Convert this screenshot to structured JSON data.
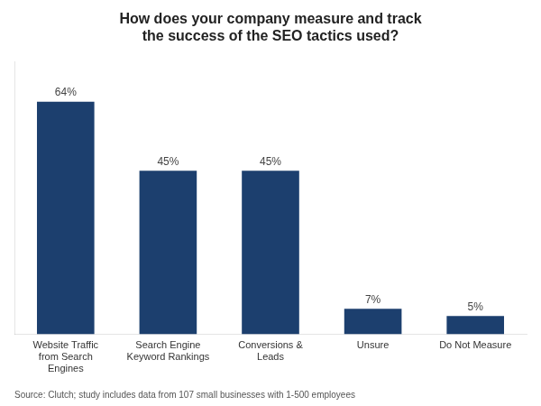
{
  "chart_data": {
    "type": "bar",
    "title": "How does your company measure and track\nthe success of the SEO tactics used?",
    "categories": [
      "Website Traffic\nfrom Search\nEngines",
      "Search Engine\nKeyword Rankings",
      "Conversions &\nLeads",
      "Unsure",
      "Do Not Measure"
    ],
    "values": [
      64,
      45,
      45,
      7,
      5
    ],
    "value_labels": [
      "64%",
      "45%",
      "45%",
      "7%",
      "5%"
    ],
    "data_labels": true,
    "color": "#1c3f6e",
    "ylim": [
      0,
      75
    ],
    "grid": false,
    "tick_labels": "x",
    "annotations": [
      "Source: Clutch; study includes data from 107 small businesses with 1-500 employees"
    ]
  }
}
